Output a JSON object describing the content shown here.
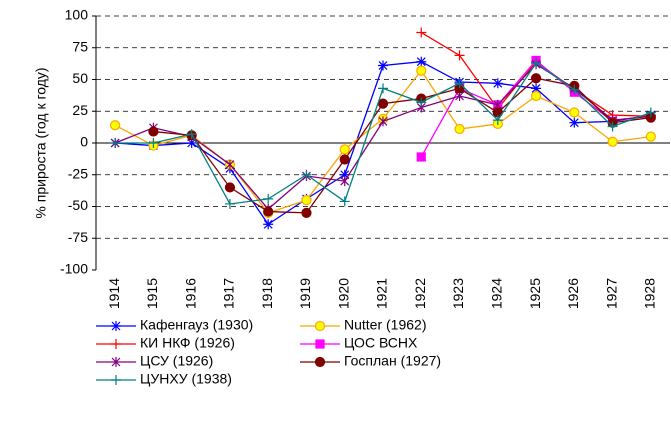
{
  "chart_data": {
    "type": "line",
    "ylabel": "% прироста (год к году)",
    "categories": [
      "1914",
      "1915",
      "1916",
      "1917",
      "1918",
      "1919",
      "1920",
      "1921",
      "1922",
      "1923",
      "1924",
      "1925",
      "1926",
      "1927",
      "1928"
    ],
    "ylim": [
      -100,
      100
    ],
    "yticks": [
      -100,
      -75,
      -50,
      -25,
      0,
      25,
      50,
      75,
      100
    ],
    "grid": true,
    "series": [
      {
        "name": "Кафенгауз (1930)",
        "color": "#0000ff",
        "marker": "asterisk",
        "values": [
          0,
          -2,
          0,
          -20,
          -64,
          -44,
          -25,
          61,
          64,
          48,
          47,
          43,
          16,
          17,
          22
        ]
      },
      {
        "name": "Nutter (1962)",
        "color": "#ffa500",
        "marker": "circle-open",
        "values": [
          14,
          -2,
          6,
          -17,
          -55,
          -45,
          -5,
          19,
          57,
          11,
          15,
          37,
          24,
          1,
          5
        ]
      },
      {
        "name": "КИ НКФ (1926)",
        "color": "#ff0000",
        "marker": "plus",
        "values": [
          null,
          null,
          null,
          null,
          null,
          null,
          null,
          null,
          87,
          69,
          27,
          64,
          42,
          22,
          21
        ]
      },
      {
        "name": "ЦОС ВСНХ",
        "color": "#ff00ff",
        "marker": "square",
        "values": [
          null,
          null,
          null,
          null,
          null,
          null,
          null,
          null,
          -11,
          43,
          30,
          65,
          40,
          17,
          null
        ]
      },
      {
        "name": "ЦСУ (1926)",
        "color": "#800080",
        "marker": "star",
        "values": [
          0,
          12,
          5,
          -17,
          -52,
          -26,
          -30,
          17,
          28,
          37,
          30,
          62,
          43,
          18,
          21
        ]
      },
      {
        "name": "Госплан (1927)",
        "color": "#800000",
        "marker": "circle",
        "values": [
          null,
          9,
          6,
          -35,
          -54,
          -55,
          -13,
          31,
          35,
          43,
          24,
          51,
          45,
          16,
          20
        ]
      },
      {
        "name": "ЦУНХУ (1938)",
        "color": "#008080",
        "marker": "plus",
        "values": [
          0,
          0,
          7,
          -48,
          -44,
          -25,
          -46,
          43,
          32,
          47,
          18,
          63,
          42,
          13,
          24
        ]
      }
    ]
  }
}
